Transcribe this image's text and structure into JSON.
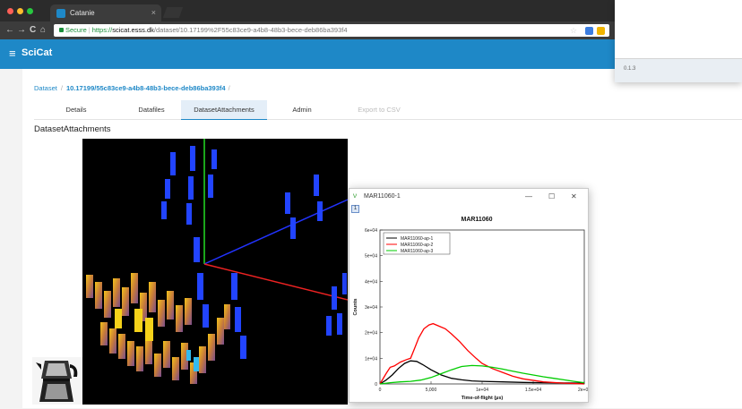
{
  "browser": {
    "tab_title": "Catanie",
    "tab_close": "×",
    "url_secure_label": "Secure",
    "url_scheme": "https://",
    "url_host": "scicat.esss.dk",
    "url_path": "/dataset/10.17199%2F55c83ce9-a4b8-48b3-bece-deb86ba393f4",
    "nav": {
      "back": "←",
      "forward": "→",
      "reload": "C",
      "home": "⌂"
    },
    "star": "☆"
  },
  "app": {
    "menu_icon": "≡",
    "name": "SciCat",
    "version": "0.1.3",
    "brand_color": "#1e88c7"
  },
  "breadcrumb": {
    "root": "Dataset",
    "separator": "/",
    "current": "10.17199/55c83ce9-a4b8-48b3-bece-deb86ba393f4"
  },
  "dataset_tabs": [
    {
      "label": "Details",
      "active": false,
      "disabled": false
    },
    {
      "label": "Datafiles",
      "active": false,
      "disabled": false
    },
    {
      "label": "DatasetAttachments",
      "active": true,
      "disabled": false
    },
    {
      "label": "Admin",
      "active": false,
      "disabled": false
    },
    {
      "label": "Export to CSV",
      "active": false,
      "disabled": true
    }
  ],
  "section_title": "DatasetAttachments",
  "plot_window": {
    "window_title": "MAR11060-1",
    "window_icon": "ν",
    "minimize": "—",
    "maximize": "☐",
    "close": "✕",
    "toolbar_button": "1"
  },
  "chart_data": {
    "type": "line",
    "title": "MAR11060",
    "xlabel": "Time-of-flight (µs)",
    "ylabel": "Counts",
    "xlim": [
      0,
      20000
    ],
    "ylim": [
      0,
      60000
    ],
    "x_ticks": [
      "0",
      "5,000",
      "1e+04",
      "1.5e+04",
      "2e+04"
    ],
    "y_ticks": [
      "0",
      "1e+04",
      "2e+04",
      "3e+04",
      "4e+04",
      "5e+04",
      "6e+04"
    ],
    "legend_position": "top-left",
    "series": [
      {
        "name": "MAR11060-ap-1",
        "color": "#000000",
        "x": [
          0,
          600,
          1200,
          1800,
          2400,
          3000,
          3600,
          4200,
          5000,
          6000,
          7000,
          8000,
          9000,
          10000,
          12000,
          14000,
          16000,
          18000,
          20000
        ],
        "y": [
          0,
          1500,
          3500,
          6000,
          8000,
          9000,
          8800,
          7500,
          5500,
          3500,
          2200,
          1600,
          1200,
          1000,
          800,
          600,
          500,
          400,
          300
        ]
      },
      {
        "name": "MAR11060-ap-2",
        "color": "#ff0000",
        "x": [
          0,
          600,
          1000,
          1400,
          2000,
          2600,
          3000,
          3400,
          3800,
          4300,
          4800,
          5200,
          5800,
          6400,
          7000,
          7800,
          8600,
          9400,
          10000,
          11000,
          12000,
          13000,
          14000,
          16000,
          18000,
          20000
        ],
        "y": [
          0,
          4000,
          6500,
          7000,
          8500,
          9500,
          10000,
          14000,
          18000,
          21500,
          23000,
          23500,
          22500,
          21500,
          19500,
          16500,
          13000,
          10000,
          8000,
          6000,
          4500,
          3000,
          2000,
          800,
          300,
          0
        ]
      },
      {
        "name": "MAR11060-ap-3",
        "color": "#00cc00",
        "x": [
          0,
          1000,
          2000,
          3000,
          4000,
          5000,
          6000,
          7000,
          8000,
          9000,
          10000,
          11000,
          12000,
          13000,
          14000,
          15000,
          16000,
          17000,
          18000,
          19000,
          20000
        ],
        "y": [
          0,
          500,
          800,
          1000,
          1500,
          2500,
          4000,
          5500,
          6800,
          7200,
          7000,
          6500,
          5800,
          5000,
          4200,
          3500,
          2800,
          2200,
          1600,
          1000,
          500
        ]
      }
    ]
  }
}
